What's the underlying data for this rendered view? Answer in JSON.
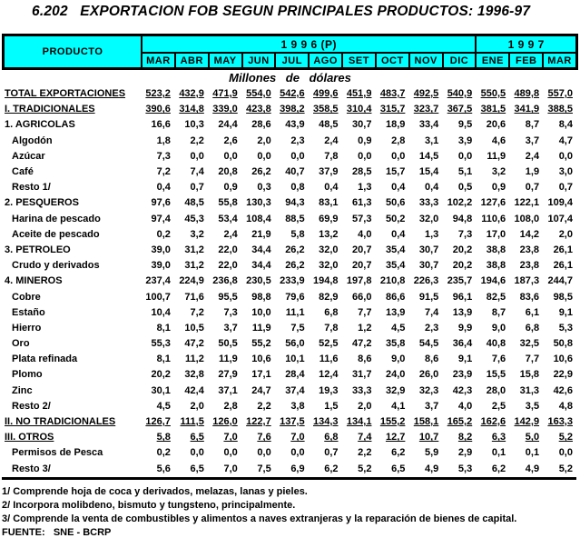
{
  "title": "6.202   EXPORTACION FOB SEGUN PRINCIPALES PRODUCTOS: 1996-97",
  "subtitle": "Millones de dólares",
  "colors": {
    "header_bg": "#00FFFF",
    "border": "#000000",
    "text": "#000000"
  },
  "header": {
    "product_col": "PRODUCTO",
    "year_1996": "1 9 9 6 (P)",
    "year_1997": "1 9 9 7",
    "months": [
      "MAR",
      "ABR",
      "MAY",
      "JUN",
      "JUL",
      "AGO",
      "SET",
      "OCT",
      "NOV",
      "DIC",
      "ENE",
      "FEB",
      "MAR"
    ],
    "months_1996_count": 10,
    "months_1997_count": 3
  },
  "table": {
    "rows": [
      {
        "label": "TOTAL EXPORTACIONES",
        "style": "section",
        "values": [
          "523,2",
          "432,9",
          "471,9",
          "554,0",
          "542,6",
          "499,6",
          "451,9",
          "483,7",
          "492,5",
          "540,9",
          "550,5",
          "489,8",
          "557,0"
        ]
      },
      {
        "label": "I. TRADICIONALES",
        "style": "section",
        "values": [
          "390,6",
          "314,8",
          "339,0",
          "423,8",
          "398,2",
          "358,5",
          "310,4",
          "315,7",
          "323,7",
          "367,5",
          "381,5",
          "341,9",
          "388,5"
        ]
      },
      {
        "label": "1. AGRICOLAS",
        "style": "group",
        "values": [
          "16,6",
          "10,3",
          "24,4",
          "28,6",
          "43,9",
          "48,5",
          "30,7",
          "18,9",
          "33,4",
          "9,5",
          "20,6",
          "8,7",
          "8,4"
        ]
      },
      {
        "label": "Algodón",
        "style": "item",
        "values": [
          "1,8",
          "2,2",
          "2,6",
          "2,0",
          "2,3",
          "2,4",
          "0,9",
          "2,8",
          "3,1",
          "3,9",
          "4,6",
          "3,7",
          "4,7"
        ]
      },
      {
        "label": "Azúcar",
        "style": "item",
        "values": [
          "7,3",
          "0,0",
          "0,0",
          "0,0",
          "0,0",
          "7,8",
          "0,0",
          "0,0",
          "14,5",
          "0,0",
          "11,9",
          "2,4",
          "0,0"
        ]
      },
      {
        "label": "Café",
        "style": "item",
        "values": [
          "7,2",
          "7,4",
          "20,8",
          "26,2",
          "40,7",
          "37,9",
          "28,5",
          "15,7",
          "15,4",
          "5,1",
          "3,2",
          "1,9",
          "3,0"
        ]
      },
      {
        "label": "Resto 1/",
        "style": "item",
        "values": [
          "0,4",
          "0,7",
          "0,9",
          "0,3",
          "0,8",
          "0,4",
          "1,3",
          "0,4",
          "0,4",
          "0,5",
          "0,9",
          "0,7",
          "0,7"
        ]
      },
      {
        "label": "2. PESQUEROS",
        "style": "group",
        "values": [
          "97,6",
          "48,5",
          "55,8",
          "130,3",
          "94,3",
          "83,1",
          "61,3",
          "50,6",
          "33,3",
          "102,2",
          "127,6",
          "122,1",
          "109,4"
        ]
      },
      {
        "label": "Harina de pescado",
        "style": "item",
        "values": [
          "97,4",
          "45,3",
          "53,4",
          "108,4",
          "88,5",
          "69,9",
          "57,3",
          "50,2",
          "32,0",
          "94,8",
          "110,6",
          "108,0",
          "107,4"
        ]
      },
      {
        "label": "Aceite de pescado",
        "style": "item",
        "values": [
          "0,2",
          "3,2",
          "2,4",
          "21,9",
          "5,8",
          "13,2",
          "4,0",
          "0,4",
          "1,3",
          "7,3",
          "17,0",
          "14,2",
          "2,0"
        ]
      },
      {
        "label": "3. PETROLEO",
        "style": "group",
        "values": [
          "39,0",
          "31,2",
          "22,0",
          "34,4",
          "26,2",
          "32,0",
          "20,7",
          "35,4",
          "30,7",
          "20,2",
          "38,8",
          "23,8",
          "26,1"
        ]
      },
      {
        "label": "Crudo y derivados",
        "style": "item",
        "values": [
          "39,0",
          "31,2",
          "22,0",
          "34,4",
          "26,2",
          "32,0",
          "20,7",
          "35,4",
          "30,7",
          "20,2",
          "38,8",
          "23,8",
          "26,1"
        ]
      },
      {
        "label": "4. MINEROS",
        "style": "group",
        "values": [
          "237,4",
          "224,9",
          "236,8",
          "230,5",
          "233,9",
          "194,8",
          "197,8",
          "210,8",
          "226,3",
          "235,7",
          "194,6",
          "187,3",
          "244,7"
        ]
      },
      {
        "label": "Cobre",
        "style": "item",
        "values": [
          "100,7",
          "71,6",
          "95,5",
          "98,8",
          "79,6",
          "82,9",
          "66,0",
          "86,6",
          "91,5",
          "96,1",
          "82,5",
          "83,6",
          "98,5"
        ]
      },
      {
        "label": "Estaño",
        "style": "item",
        "values": [
          "10,4",
          "7,2",
          "7,3",
          "10,0",
          "11,1",
          "6,8",
          "7,7",
          "13,9",
          "7,4",
          "13,9",
          "8,7",
          "6,1",
          "9,1"
        ]
      },
      {
        "label": "Hierro",
        "style": "item",
        "values": [
          "8,1",
          "10,5",
          "3,7",
          "11,9",
          "7,5",
          "7,8",
          "1,2",
          "4,5",
          "2,3",
          "9,9",
          "9,0",
          "6,8",
          "5,3"
        ]
      },
      {
        "label": "Oro",
        "style": "item",
        "values": [
          "55,3",
          "47,2",
          "50,5",
          "55,2",
          "56,0",
          "52,5",
          "47,2",
          "35,8",
          "54,5",
          "36,4",
          "40,8",
          "32,5",
          "50,8"
        ]
      },
      {
        "label": "Plata refinada",
        "style": "item",
        "values": [
          "8,1",
          "11,2",
          "11,9",
          "10,6",
          "10,1",
          "11,6",
          "8,6",
          "9,0",
          "8,6",
          "9,1",
          "7,6",
          "7,7",
          "10,6"
        ]
      },
      {
        "label": "Plomo",
        "style": "item",
        "values": [
          "20,2",
          "32,8",
          "27,9",
          "17,1",
          "28,4",
          "12,4",
          "31,7",
          "24,0",
          "26,0",
          "23,9",
          "15,5",
          "15,8",
          "22,9"
        ]
      },
      {
        "label": "Zinc",
        "style": "item",
        "values": [
          "30,1",
          "42,4",
          "37,1",
          "24,7",
          "37,4",
          "19,3",
          "33,3",
          "32,9",
          "32,3",
          "42,3",
          "28,0",
          "31,3",
          "42,6"
        ]
      },
      {
        "label": "Resto 2/",
        "style": "item",
        "values": [
          "4,5",
          "2,0",
          "2,8",
          "2,2",
          "3,8",
          "1,5",
          "2,0",
          "4,1",
          "3,7",
          "4,0",
          "2,5",
          "3,5",
          "4,8"
        ]
      },
      {
        "label": "II. NO TRADICIONALES",
        "style": "section",
        "values": [
          "126,7",
          "111,5",
          "126,0",
          "122,7",
          "137,5",
          "134,3",
          "134,1",
          "155,2",
          "158,1",
          "165,2",
          "162,6",
          "142,9",
          "163,3"
        ]
      },
      {
        "label": "III. OTROS",
        "style": "section",
        "values": [
          "5,8",
          "6,5",
          "7,0",
          "7,6",
          "7,0",
          "6,8",
          "7,4",
          "12,7",
          "10,7",
          "8,2",
          "6,3",
          "5,0",
          "5,2"
        ]
      },
      {
        "label": "Permisos de Pesca",
        "style": "item",
        "values": [
          "0,2",
          "0,0",
          "0,0",
          "0,0",
          "0,0",
          "0,7",
          "2,2",
          "6,2",
          "5,9",
          "2,9",
          "0,1",
          "0,1",
          "0,0"
        ]
      },
      {
        "label": "Resto 3/",
        "style": "item",
        "values": [
          "5,6",
          "6,5",
          "7,0",
          "7,5",
          "6,9",
          "6,2",
          "5,2",
          "6,5",
          "4,9",
          "5,3",
          "6,2",
          "4,9",
          "5,2"
        ]
      }
    ]
  },
  "footnotes": [
    "1/ Comprende hoja de coca y derivados, melazas, lanas y pieles.",
    "2/ Incorpora molibdeno, bismuto y tungsteno, principalmente.",
    "3/ Comprende la venta de combustibles y alimentos a naves extranjeras y la reparación de bienes de capital.",
    "FUENTE:   SNE - BCRP"
  ]
}
